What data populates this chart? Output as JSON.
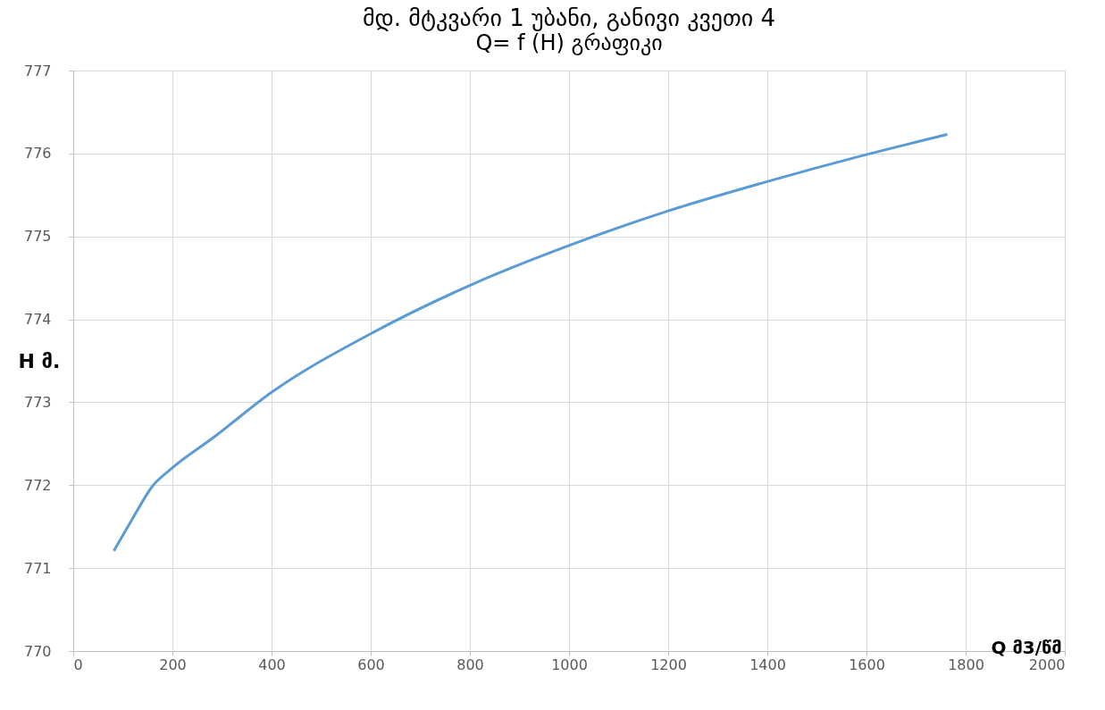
{
  "chart_data": {
    "type": "line",
    "title": "მდ. მტკვარი 1 უბანი, განივი კვეთი 4",
    "subtitle": "Q= f (H) გრაფიკი",
    "xlabel": "Q მ3/წმ",
    "ylabel": "H მ.",
    "x": [
      82,
      120,
      160,
      196,
      286,
      400,
      598,
      804,
      1000,
      1196,
      1393,
      1589,
      1763
    ],
    "series": [
      {
        "color": "#5b9bd5",
        "values": [
          771.21,
          771.6,
          771.99,
          772.19,
          772.59,
          773.12,
          773.82,
          774.42,
          774.89,
          775.3,
          775.65,
          775.97,
          776.23
        ]
      }
    ],
    "xlim": [
      0,
      2000
    ],
    "xticks": [
      0,
      200,
      400,
      600,
      800,
      1000,
      1200,
      1400,
      1600,
      1800,
      2000
    ],
    "ylim": [
      770,
      777
    ],
    "yticks": [
      770,
      771,
      772,
      773,
      774,
      775,
      776,
      777
    ],
    "grid": true,
    "marker": "none",
    "line_style": "solid"
  }
}
